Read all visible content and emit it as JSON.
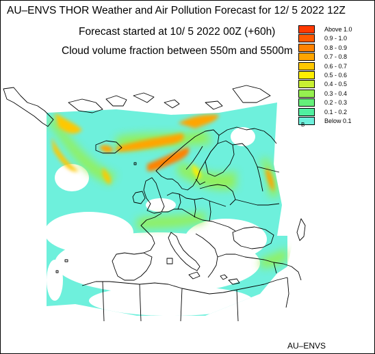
{
  "header": {
    "title": "AU–ENVS THOR Weather and Air Pollution Forecast for 12/ 5 2022  12Z",
    "forecast_start": "Forecast started at 10/ 5 2022  00Z (+60h)",
    "variable": "Cloud volume fraction between 550m and 5500m"
  },
  "footer": {
    "credit": "AU–ENVS"
  },
  "legend": {
    "items": [
      {
        "label": "Above   1.0",
        "color": "#ff3a00"
      },
      {
        "label": "0.9  -  1.0",
        "color": "#ff5a00"
      },
      {
        "label": "0.8  -  0.9",
        "color": "#ff8200"
      },
      {
        "label": "0.7  -  0.8",
        "color": "#ffa500"
      },
      {
        "label": "0.6  -  0.7",
        "color": "#ffc800"
      },
      {
        "label": "0.5  -  0.6",
        "color": "#ffee00"
      },
      {
        "label": "0.4  -  0.5",
        "color": "#c8f032"
      },
      {
        "label": "0.3  -  0.4",
        "color": "#96f050"
      },
      {
        "label": "0.2  -  0.3",
        "color": "#64f07a"
      },
      {
        "label": "0.1  -  0.2",
        "color": "#50f0a0"
      },
      {
        "label": "Below   0.1",
        "color": "#6ef0dc",
        "glyph": "B"
      }
    ]
  }
}
